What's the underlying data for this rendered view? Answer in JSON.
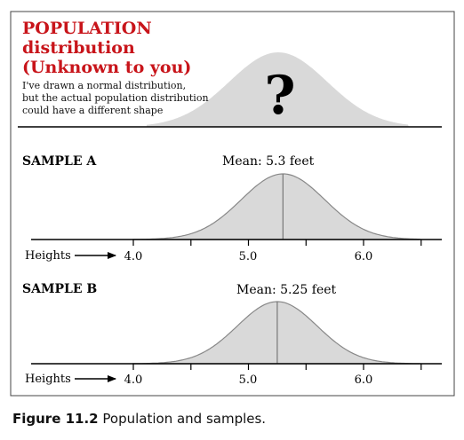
{
  "population": {
    "title_lines": [
      "POPULATION",
      "distribution",
      "(Unknown to you)"
    ],
    "note_lines": [
      "I've drawn a normal distribution,",
      "but the actual population distribution",
      "could have a different shape"
    ],
    "symbol": "?"
  },
  "samples": [
    {
      "label": "SAMPLE A",
      "mean_text": "Mean: 5.3 feet",
      "mean_value": 5.3,
      "axis_label": "Heights",
      "ticks": [
        "4.0",
        "5.0",
        "6.0"
      ]
    },
    {
      "label": "SAMPLE B",
      "mean_text": "Mean: 5.25 feet",
      "mean_value": 5.25,
      "axis_label": "Heights",
      "ticks": [
        "4.0",
        "5.0",
        "6.0"
      ]
    }
  ],
  "caption": {
    "number": "Figure 11.2",
    "text": "Population and samples."
  },
  "colors": {
    "title_red": "#c8141a",
    "curve_fill": "#d9d9d9",
    "curve_stroke": "#888888",
    "frame": "#444444"
  }
}
